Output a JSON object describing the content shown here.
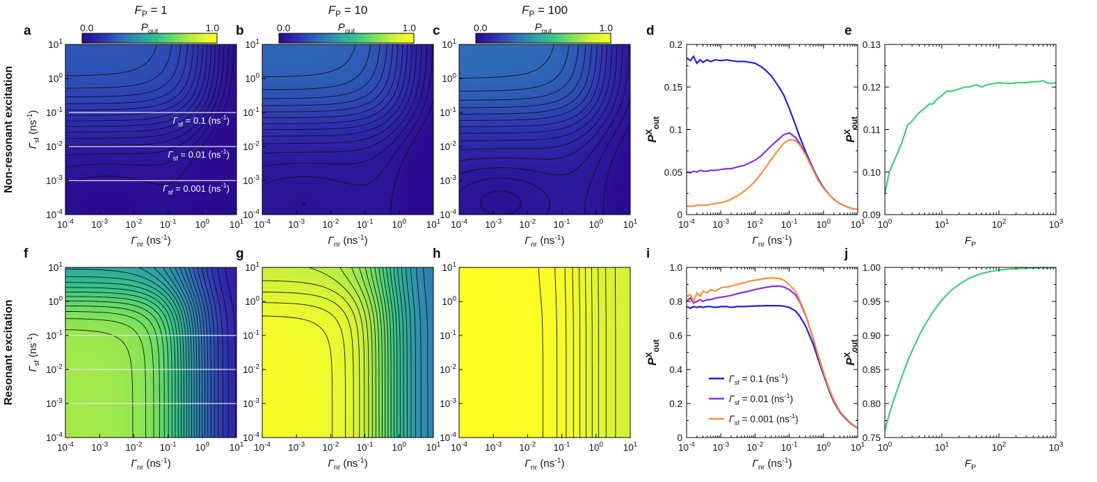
{
  "figure": {
    "row_labels": [
      "Non-resonant excitation",
      "Resonant excitation"
    ],
    "column_titles": [
      {
        "prefix": "F",
        "sub": "P",
        "value": " = 1"
      },
      {
        "prefix": "F",
        "sub": "P",
        "value": " = 10"
      },
      {
        "prefix": "F",
        "sub": "P",
        "value": " = 100"
      }
    ],
    "colorbar": {
      "min_label": "0.0",
      "max_label": "1.0",
      "title": "P",
      "title_sub": "out"
    },
    "colors": {
      "curve_blue": "#1f1fd6",
      "curve_purple": "#8a2be2",
      "curve_orange": "#ff8c3a",
      "curve_green": "#3ccf78",
      "colormap": [
        "#2b0a8f",
        "#2e2fb0",
        "#2f6bb8",
        "#2e9aa8",
        "#35c48a",
        "#7de25a",
        "#d2f23a",
        "#ffff24"
      ]
    }
  },
  "chart_data": [
    {
      "panel": "a",
      "type": "heatmap",
      "F_P": 1,
      "excitation": "non-resonant",
      "xlabel": "Γnr (ns-1)",
      "ylabel": "Γsf (ns-1)",
      "xscale": "log",
      "yscale": "log",
      "xlim": [
        0.0001,
        10
      ],
      "ylim": [
        0.0001,
        10
      ],
      "x_ticks": [
        "10-4",
        "10-3",
        "10-2",
        "10-1",
        "100",
        "101"
      ],
      "y_ticks": [
        "10-4",
        "10-3",
        "10-2",
        "10-1",
        "100",
        "101"
      ],
      "value_range": [
        0,
        1
      ],
      "value_label": "Pout",
      "p_floor": 0.03,
      "p_peak": 0.24,
      "p_low": 0.02,
      "resonant": false,
      "contour_count": 14,
      "reference_lines": [
        0.1,
        0.01,
        0.001
      ],
      "annotations": [
        {
          "text": "Γsf = 0.1 (ns-1)",
          "sym": "Γ",
          "sub": "sf",
          "rest": " = 0.1 (ns",
          "sup": "-1",
          "end": ")",
          "at_y": 0.1
        },
        {
          "text": "Γsf = 0.01 (ns-1)",
          "sym": "Γ",
          "sub": "sf",
          "rest": " = 0.01 (ns",
          "sup": "-1",
          "end": ")",
          "at_y": 0.01
        },
        {
          "text": "Γsf = 0.001 (ns-1)",
          "sym": "Γ",
          "sub": "sf",
          "rest": " = 0.001 (ns",
          "sup": "-1",
          "end": ")",
          "at_y": 0.001
        }
      ]
    },
    {
      "panel": "b",
      "type": "heatmap",
      "F_P": 10,
      "excitation": "non-resonant",
      "xlabel": "Γnr (ns-1)",
      "ylabel": "",
      "xscale": "log",
      "yscale": "log",
      "xlim": [
        0.0001,
        10
      ],
      "ylim": [
        0.0001,
        10
      ],
      "x_ticks": [
        "10-4",
        "10-3",
        "10-2",
        "10-1",
        "100",
        "101"
      ],
      "y_ticks": [
        "10-4",
        "10-3",
        "10-2",
        "10-1",
        "100",
        "101"
      ],
      "value_range": [
        0,
        1
      ],
      "value_label": "Pout",
      "p_floor": 0.05,
      "p_peak": 0.28,
      "p_low": 0.04,
      "resonant": false,
      "contour_count": 14,
      "reference_lines": [],
      "annotations": []
    },
    {
      "panel": "c",
      "type": "heatmap",
      "F_P": 100,
      "excitation": "non-resonant",
      "xlabel": "Γnr (ns-1)",
      "ylabel": "",
      "xscale": "log",
      "yscale": "log",
      "xlim": [
        0.0001,
        10
      ],
      "ylim": [
        0.0001,
        10
      ],
      "x_ticks": [
        "10-4",
        "10-3",
        "10-2",
        "10-1",
        "100",
        "101"
      ],
      "y_ticks": [
        "10-4",
        "10-3",
        "10-2",
        "10-1",
        "100",
        "101"
      ],
      "value_range": [
        0,
        1
      ],
      "value_label": "Pout",
      "p_floor": 0.07,
      "p_peak": 0.3,
      "p_low": 0.05,
      "resonant": false,
      "contour_count": 14,
      "reference_lines": [],
      "annotations": []
    },
    {
      "panel": "d",
      "type": "line",
      "excitation": "non-resonant",
      "xlabel": "Γnr (ns-1)",
      "ylabel": "PXout",
      "xscale": "log",
      "xlim": [
        0.0001,
        10
      ],
      "ylim": [
        0,
        0.2
      ],
      "x_ticks": [
        "10-4",
        "10-3",
        "10-2",
        "10-1",
        "100",
        "101"
      ],
      "y_ticks": [
        "0",
        "0.05",
        "0.1",
        "0.15",
        "0.2"
      ],
      "series": [
        {
          "name": "Γsf = 0.1 (ns-1)",
          "color": "#1f1fd6",
          "x": [
            0.0001,
            0.00013,
            0.00016,
            0.0002,
            0.00025,
            0.0003,
            0.0004,
            0.0005,
            0.0007,
            0.001,
            0.0015,
            0.002,
            0.003,
            0.005,
            0.007,
            0.01,
            0.015,
            0.02,
            0.03,
            0.05,
            0.07,
            0.1,
            0.15,
            0.2,
            0.3,
            0.5,
            0.7,
            1,
            1.5,
            2,
            3,
            5,
            7,
            10
          ],
          "y": [
            0.184,
            0.181,
            0.186,
            0.178,
            0.182,
            0.179,
            0.182,
            0.18,
            0.182,
            0.181,
            0.182,
            0.181,
            0.18,
            0.18,
            0.179,
            0.178,
            0.174,
            0.17,
            0.163,
            0.15,
            0.14,
            0.125,
            0.106,
            0.092,
            0.074,
            0.054,
            0.042,
            0.032,
            0.023,
            0.018,
            0.013,
            0.009,
            0.007,
            0.006
          ]
        },
        {
          "name": "Γsf = 0.01 (ns-1)",
          "color": "#8a2be2",
          "x": [
            0.0001,
            0.00013,
            0.00016,
            0.0002,
            0.00025,
            0.0003,
            0.0004,
            0.0005,
            0.0007,
            0.001,
            0.0015,
            0.002,
            0.003,
            0.005,
            0.007,
            0.01,
            0.015,
            0.02,
            0.03,
            0.05,
            0.07,
            0.1,
            0.15,
            0.2,
            0.3,
            0.5,
            0.7,
            1,
            1.5,
            2,
            3,
            5,
            7,
            10
          ],
          "y": [
            0.05,
            0.049,
            0.051,
            0.05,
            0.052,
            0.051,
            0.051,
            0.052,
            0.052,
            0.053,
            0.054,
            0.054,
            0.056,
            0.058,
            0.061,
            0.064,
            0.069,
            0.074,
            0.081,
            0.089,
            0.094,
            0.096,
            0.091,
            0.084,
            0.071,
            0.053,
            0.041,
            0.031,
            0.023,
            0.018,
            0.013,
            0.009,
            0.007,
            0.006
          ]
        },
        {
          "name": "Γsf = 0.001 (ns-1)",
          "color": "#ff8c3a",
          "x": [
            0.0001,
            0.00013,
            0.00016,
            0.0002,
            0.00025,
            0.0003,
            0.0004,
            0.0005,
            0.0007,
            0.001,
            0.0015,
            0.002,
            0.003,
            0.005,
            0.007,
            0.01,
            0.015,
            0.02,
            0.03,
            0.05,
            0.07,
            0.1,
            0.15,
            0.2,
            0.3,
            0.5,
            0.7,
            1,
            1.5,
            2,
            3,
            5,
            7,
            10
          ],
          "y": [
            0.01,
            0.01,
            0.01,
            0.011,
            0.011,
            0.011,
            0.011,
            0.012,
            0.013,
            0.014,
            0.016,
            0.018,
            0.022,
            0.028,
            0.033,
            0.039,
            0.048,
            0.055,
            0.065,
            0.077,
            0.084,
            0.088,
            0.087,
            0.082,
            0.07,
            0.052,
            0.04,
            0.031,
            0.023,
            0.018,
            0.013,
            0.009,
            0.007,
            0.006
          ]
        }
      ]
    },
    {
      "panel": "e",
      "type": "line",
      "excitation": "non-resonant",
      "xlabel": "FP",
      "ylabel": "PXout",
      "xscale": "log",
      "xlim": [
        1,
        1000
      ],
      "ylim": [
        0.09,
        0.13
      ],
      "x_ticks": [
        "100",
        "101",
        "102",
        "103"
      ],
      "y_ticks": [
        "0.09",
        "0.10",
        "0.11",
        "0.12",
        "0.13"
      ],
      "series": [
        {
          "name": "",
          "color": "#3ccf78",
          "x": [
            1,
            1.2,
            1.5,
            2,
            2.5,
            3,
            4,
            5,
            6,
            7,
            8,
            10,
            12,
            15,
            20,
            25,
            30,
            40,
            50,
            60,
            80,
            100,
            150,
            200,
            300,
            400,
            500,
            600,
            700,
            800,
            1000
          ],
          "y": [
            0.095,
            0.1,
            0.103,
            0.107,
            0.111,
            0.112,
            0.114,
            0.115,
            0.116,
            0.116,
            0.117,
            0.118,
            0.119,
            0.119,
            0.1195,
            0.12,
            0.12,
            0.1205,
            0.12,
            0.1205,
            0.1208,
            0.121,
            0.1208,
            0.121,
            0.121,
            0.1212,
            0.1213,
            0.1215,
            0.121,
            0.1208,
            0.121
          ]
        }
      ]
    },
    {
      "panel": "f",
      "type": "heatmap",
      "F_P": 1,
      "excitation": "resonant",
      "xlabel": "Γnr (ns-1)",
      "ylabel": "Γsf (ns-1)",
      "xscale": "log",
      "yscale": "log",
      "xlim": [
        0.0001,
        10
      ],
      "ylim": [
        0.0001,
        10
      ],
      "x_ticks": [
        "10-4",
        "10-3",
        "10-2",
        "10-1",
        "100",
        "101"
      ],
      "y_ticks": [
        "10-4",
        "10-3",
        "10-2",
        "10-1",
        "100",
        "101"
      ],
      "value_range": [
        0,
        1
      ],
      "value_label": "Pout",
      "p_max": 0.78,
      "p_top": 0.45,
      "p_min": 0.05,
      "resonant": true,
      "contour_count": 26,
      "reference_lines": [
        0.1,
        0.01,
        0.001
      ],
      "annotations": []
    },
    {
      "panel": "g",
      "type": "heatmap",
      "F_P": 10,
      "excitation": "resonant",
      "xlabel": "Γnr (ns-1)",
      "ylabel": "",
      "xscale": "log",
      "yscale": "log",
      "xlim": [
        0.0001,
        10
      ],
      "ylim": [
        0.0001,
        10
      ],
      "x_ticks": [
        "10-4",
        "10-3",
        "10-2",
        "10-1",
        "100",
        "101"
      ],
      "y_ticks": [
        "10-4",
        "10-3",
        "10-2",
        "10-1",
        "100",
        "101"
      ],
      "value_range": [
        0,
        1
      ],
      "value_label": "Pout",
      "p_max": 0.97,
      "p_top": 0.82,
      "p_min": 0.3,
      "resonant": true,
      "contour_count": 22,
      "reference_lines": [],
      "annotations": []
    },
    {
      "panel": "h",
      "type": "heatmap",
      "F_P": 100,
      "excitation": "resonant",
      "xlabel": "Γnr (ns-1)",
      "ylabel": "",
      "xscale": "log",
      "yscale": "log",
      "xlim": [
        0.0001,
        10
      ],
      "ylim": [
        0.0001,
        10
      ],
      "x_ticks": [
        "10-4",
        "10-3",
        "10-2",
        "10-1",
        "100",
        "101"
      ],
      "y_ticks": [
        "10-4",
        "10-3",
        "10-2",
        "10-1",
        "100",
        "101"
      ],
      "value_range": [
        0,
        1
      ],
      "value_label": "Pout",
      "p_max": 0.998,
      "p_top": 0.995,
      "p_min": 0.85,
      "resonant": true,
      "contour_count": 10,
      "reference_lines": [],
      "annotations": []
    },
    {
      "panel": "i",
      "type": "line",
      "excitation": "resonant",
      "xlabel": "Γnr (ns-1)",
      "ylabel": "PXout",
      "xscale": "log",
      "xlim": [
        0.0001,
        10
      ],
      "ylim": [
        0,
        1.0
      ],
      "x_ticks": [
        "10-4",
        "10-3",
        "10-2",
        "10-1",
        "100",
        "101"
      ],
      "y_ticks": [
        "0",
        "0.2",
        "0.4",
        "0.6",
        "0.8",
        "1.0"
      ],
      "legend": "bottom-left",
      "series": [
        {
          "name": "Γsf = 0.1 (ns-1)",
          "sym": "Γ",
          "sub": "sf",
          "rest": " = 0.1 (ns",
          "sup": "-1",
          "end": ")",
          "color": "#1f1fd6",
          "x": [
            0.0001,
            0.00013,
            0.00016,
            0.0002,
            0.00025,
            0.0003,
            0.0004,
            0.0005,
            0.0007,
            0.001,
            0.0015,
            0.002,
            0.003,
            0.005,
            0.007,
            0.01,
            0.015,
            0.02,
            0.03,
            0.05,
            0.07,
            0.1,
            0.15,
            0.2,
            0.3,
            0.5,
            0.7,
            1,
            1.5,
            2,
            3,
            5,
            7,
            10
          ],
          "y": [
            0.77,
            0.76,
            0.77,
            0.765,
            0.77,
            0.765,
            0.77,
            0.77,
            0.765,
            0.77,
            0.77,
            0.765,
            0.77,
            0.77,
            0.772,
            0.773,
            0.774,
            0.775,
            0.775,
            0.775,
            0.772,
            0.765,
            0.745,
            0.715,
            0.655,
            0.55,
            0.46,
            0.37,
            0.27,
            0.21,
            0.15,
            0.1,
            0.075,
            0.055
          ]
        },
        {
          "name": "Γsf = 0.01 (ns-1)",
          "sym": "Γ",
          "sub": "sf",
          "rest": " = 0.01 (ns",
          "sup": "-1",
          "end": ")",
          "color": "#8a2be2",
          "x": [
            0.0001,
            0.00013,
            0.00016,
            0.0002,
            0.00025,
            0.0003,
            0.0004,
            0.0005,
            0.0007,
            0.001,
            0.0015,
            0.002,
            0.003,
            0.005,
            0.007,
            0.01,
            0.015,
            0.02,
            0.03,
            0.05,
            0.07,
            0.1,
            0.15,
            0.2,
            0.3,
            0.5,
            0.7,
            1,
            1.5,
            2,
            3,
            5,
            7,
            10
          ],
          "y": [
            0.8,
            0.82,
            0.79,
            0.8,
            0.81,
            0.8,
            0.81,
            0.81,
            0.82,
            0.825,
            0.83,
            0.835,
            0.845,
            0.855,
            0.862,
            0.87,
            0.877,
            0.882,
            0.888,
            0.89,
            0.885,
            0.87,
            0.84,
            0.8,
            0.72,
            0.58,
            0.48,
            0.38,
            0.28,
            0.22,
            0.155,
            0.105,
            0.078,
            0.057
          ]
        },
        {
          "name": "Γsf = 0.001 (ns-1)",
          "sym": "Γ",
          "sub": "sf",
          "rest": " = 0.001 (ns",
          "sup": "-1",
          "end": ")",
          "color": "#ff8c3a",
          "x": [
            0.0001,
            0.00013,
            0.00016,
            0.0002,
            0.00025,
            0.0003,
            0.0004,
            0.0005,
            0.0007,
            0.001,
            0.0015,
            0.002,
            0.003,
            0.005,
            0.007,
            0.01,
            0.015,
            0.02,
            0.03,
            0.05,
            0.07,
            0.1,
            0.15,
            0.2,
            0.3,
            0.5,
            0.7,
            1,
            1.5,
            2,
            3,
            5,
            7,
            10
          ],
          "y": [
            0.83,
            0.84,
            0.8,
            0.85,
            0.83,
            0.86,
            0.85,
            0.87,
            0.86,
            0.88,
            0.885,
            0.89,
            0.9,
            0.91,
            0.92,
            0.925,
            0.93,
            0.935,
            0.938,
            0.935,
            0.925,
            0.9,
            0.86,
            0.81,
            0.725,
            0.585,
            0.485,
            0.385,
            0.28,
            0.22,
            0.155,
            0.105,
            0.078,
            0.057
          ]
        }
      ]
    },
    {
      "panel": "j",
      "type": "line",
      "excitation": "resonant",
      "xlabel": "FP",
      "ylabel": "PXout",
      "xscale": "log",
      "xlim": [
        1,
        1000
      ],
      "ylim": [
        0.75,
        1.0
      ],
      "x_ticks": [
        "100",
        "101",
        "102",
        "103"
      ],
      "y_ticks": [
        "0.75",
        "0.80",
        "0.85",
        "0.90",
        "0.95",
        "1.00"
      ],
      "series": [
        {
          "name": "",
          "color": "#3ccf78",
          "x": [
            1,
            1.2,
            1.5,
            2,
            2.5,
            3,
            4,
            5,
            7,
            10,
            15,
            20,
            30,
            50,
            70,
            100,
            150,
            200,
            300,
            500,
            700,
            1000
          ],
          "y": [
            0.76,
            0.785,
            0.81,
            0.84,
            0.862,
            0.877,
            0.9,
            0.915,
            0.935,
            0.952,
            0.967,
            0.975,
            0.984,
            0.991,
            0.994,
            0.996,
            0.9975,
            0.998,
            0.9988,
            0.9993,
            0.9995,
            0.9997
          ]
        }
      ]
    }
  ]
}
